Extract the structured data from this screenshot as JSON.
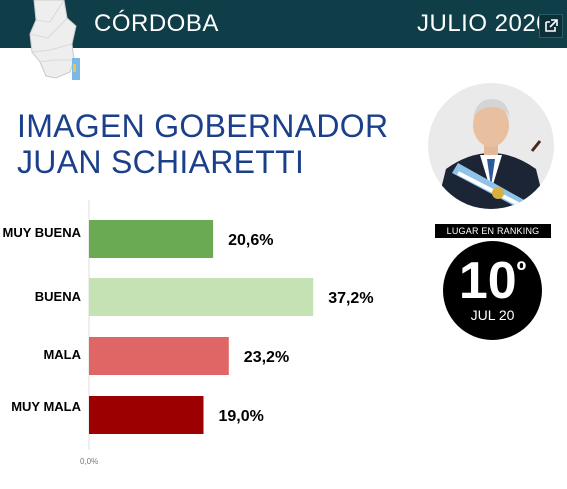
{
  "header": {
    "province": "CÓRDOBA",
    "period": "JULIO 2020",
    "open_external_icon": "external-link-icon",
    "colors": {
      "background": "#0f3d48",
      "text": "#ffffff"
    }
  },
  "title": {
    "line1": "IMAGEN GOBERNADOR",
    "line2": "JUAN SCHIARETTI",
    "color": "#1b3f8a"
  },
  "ranking": {
    "label": "LUGAR EN RANKING",
    "position": "10",
    "ordinal_mark": "º",
    "date": "JUL 20"
  },
  "chart_data": {
    "type": "bar",
    "orientation": "horizontal",
    "categories": [
      "MUY BUENA",
      "BUENA",
      "MALA",
      "MUY MALA"
    ],
    "values": [
      20.6,
      37.2,
      23.2,
      19.0
    ],
    "value_labels": [
      "20,6%",
      "37,2%",
      "23,2%",
      "19,0%"
    ],
    "colors": [
      "#6aaa52",
      "#c4e2b4",
      "#e06666",
      "#9c0000"
    ],
    "axis_tick_label": "0,0%",
    "xlim": [
      0,
      45
    ],
    "grid": false
  }
}
